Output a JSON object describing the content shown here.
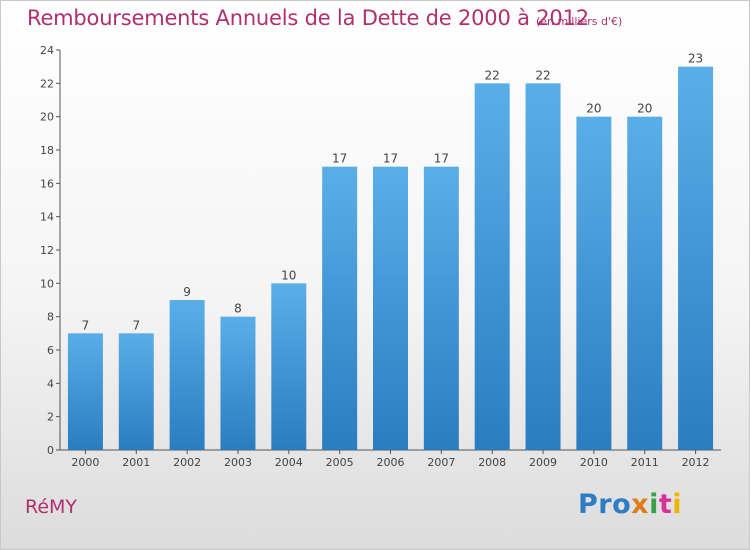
{
  "header": {
    "title": "Remboursements Annuels de la Dette de 2000 à 2012",
    "unit": "(en milliers d'€)"
  },
  "footer": {
    "town": "RéMY",
    "logo_letters": [
      "Pro",
      "x",
      "i",
      "t",
      "i"
    ]
  },
  "colors": {
    "title": "#b0306e",
    "bar_top": "#5aaee8",
    "bar_bottom": "#2a7dc0",
    "axis": "#555555"
  },
  "chart_data": {
    "type": "bar",
    "title": "Remboursements Annuels de la Dette de 2000 à 2012",
    "subtitle": "(en milliers d'€)",
    "xlabel": "",
    "ylabel": "",
    "categories": [
      "2000",
      "2001",
      "2002",
      "2003",
      "2004",
      "2005",
      "2006",
      "2007",
      "2008",
      "2009",
      "2010",
      "2011",
      "2012"
    ],
    "values": [
      7,
      7,
      9,
      8,
      10,
      17,
      17,
      17,
      22,
      22,
      20,
      20,
      23
    ],
    "ylim": [
      0,
      24
    ],
    "yticks": [
      0,
      2,
      4,
      6,
      8,
      10,
      12,
      14,
      16,
      18,
      20,
      22,
      24
    ],
    "grid": false,
    "legend": "none"
  }
}
